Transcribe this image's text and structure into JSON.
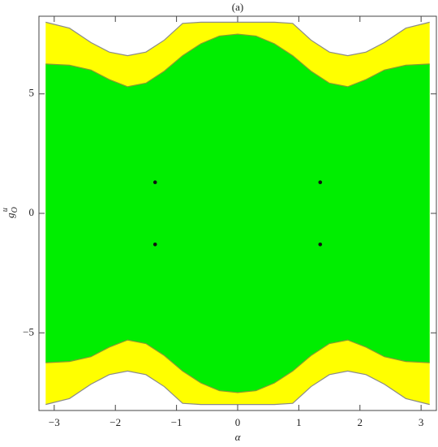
{
  "chart_data": {
    "type": "region",
    "title": "(a)",
    "xlabel": "α",
    "ylabel": {
      "base": "g",
      "sup": "u",
      "sub": "O"
    },
    "xlim": [
      -3.25,
      3.25
    ],
    "ylim": [
      -8.25,
      8.25
    ],
    "xticks": [
      {
        "value": -3,
        "label": "−3"
      },
      {
        "value": -2,
        "label": "−2"
      },
      {
        "value": -1,
        "label": "−1"
      },
      0,
      1,
      2,
      3
    ],
    "yticks": [
      {
        "value": -5,
        "label": "−5"
      },
      0,
      5
    ],
    "x": [
      -3.14,
      -2.75,
      -2.4,
      -2.1,
      -1.8,
      -1.5,
      -1.2,
      -0.9,
      -0.6,
      -0.3,
      0,
      0.3,
      0.6,
      0.9,
      1.2,
      1.5,
      1.8,
      2.1,
      2.4,
      2.75,
      3.14
    ],
    "series": [
      {
        "color": "#ffff00",
        "edge": "#8a8a8a",
        "upper": [
          8.0,
          7.75,
          7.15,
          6.75,
          6.6,
          6.75,
          7.25,
          7.95,
          8,
          8,
          8,
          8,
          8,
          7.95,
          7.25,
          6.75,
          6.6,
          6.75,
          7.15,
          7.75,
          8.0
        ],
        "lower": [
          -8.0,
          -7.75,
          -7.15,
          -6.75,
          -6.6,
          -6.75,
          -7.25,
          -7.95,
          -8,
          -8,
          -8,
          -8,
          -8,
          -7.95,
          -7.25,
          -6.75,
          -6.6,
          -6.75,
          -7.15,
          -7.75,
          -8.0
        ]
      },
      {
        "color": "#00ee00",
        "edge": "#8a9a30",
        "upper": [
          6.25,
          6.2,
          6.0,
          5.6,
          5.3,
          5.45,
          5.95,
          6.6,
          7.1,
          7.42,
          7.5,
          7.42,
          7.1,
          6.6,
          5.95,
          5.45,
          5.3,
          5.6,
          6.0,
          6.2,
          6.25
        ],
        "lower": [
          -6.25,
          -6.2,
          -6.0,
          -5.6,
          -5.3,
          -5.45,
          -5.95,
          -6.6,
          -7.1,
          -7.42,
          -7.5,
          -7.42,
          -7.1,
          -6.6,
          -5.95,
          -5.45,
          -5.3,
          -5.6,
          -6.0,
          -6.2,
          -6.25
        ]
      }
    ],
    "points": {
      "color": "#111111",
      "x": [
        -1.35,
        -1.35,
        1.35,
        1.35
      ],
      "y": [
        1.3,
        -1.3,
        1.3,
        -1.3
      ]
    }
  }
}
